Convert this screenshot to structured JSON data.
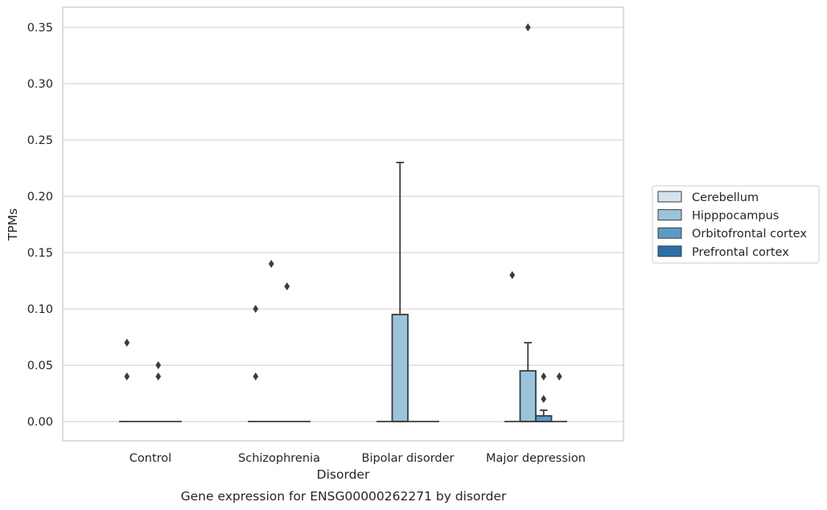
{
  "chart_data": {
    "type": "box",
    "title": "",
    "caption": "Gene expression for ENSG00000262271 by disorder",
    "xlabel": "Disorder",
    "ylabel": "TPMs",
    "ylim": [
      -0.017,
      0.368
    ],
    "yticks": [
      "0.00",
      "0.05",
      "0.10",
      "0.15",
      "0.20",
      "0.25",
      "0.30",
      "0.35"
    ],
    "ytick_values": [
      0,
      0.05,
      0.1,
      0.15,
      0.2,
      0.25,
      0.3,
      0.35
    ],
    "grid": "horizontal",
    "legend_position": "right",
    "categories": [
      "Control",
      "Schizophrenia",
      "Bipolar disorder",
      "Major depression"
    ],
    "series": [
      {
        "name": "Cerebellum",
        "color": "#d4e3f0",
        "boxes": [
          {
            "category": "Control",
            "q1": 0,
            "median": 0,
            "q3": 0,
            "whisker_low": 0,
            "whisker_high": 0,
            "outliers": [
              0.07,
              0.04
            ]
          },
          {
            "category": "Schizophrenia",
            "q1": 0,
            "median": 0,
            "q3": 0,
            "whisker_low": 0,
            "whisker_high": 0,
            "outliers": [
              0.1,
              0.04
            ]
          },
          {
            "category": "Bipolar disorder",
            "q1": 0,
            "median": 0,
            "q3": 0,
            "whisker_low": 0,
            "whisker_high": 0,
            "outliers": []
          },
          {
            "category": "Major depression",
            "q1": 0,
            "median": 0,
            "q3": 0,
            "whisker_low": 0,
            "whisker_high": 0,
            "outliers": [
              0.13
            ]
          }
        ]
      },
      {
        "name": "Hipppocampus",
        "color": "#9ac4db",
        "boxes": [
          {
            "category": "Control",
            "q1": 0,
            "median": 0,
            "q3": 0,
            "whisker_low": 0,
            "whisker_high": 0,
            "outliers": []
          },
          {
            "category": "Schizophrenia",
            "q1": 0,
            "median": 0,
            "q3": 0,
            "whisker_low": 0,
            "whisker_high": 0,
            "outliers": [
              0.14
            ]
          },
          {
            "category": "Bipolar disorder",
            "q1": 0,
            "median": 0,
            "q3": 0.095,
            "whisker_low": 0,
            "whisker_high": 0.23,
            "outliers": []
          },
          {
            "category": "Major depression",
            "q1": 0,
            "median": 0,
            "q3": 0.045,
            "whisker_low": 0,
            "whisker_high": 0.07,
            "outliers": [
              0.35
            ]
          }
        ]
      },
      {
        "name": "Orbitofrontal cortex",
        "color": "#5a9bc6",
        "boxes": [
          {
            "category": "Control",
            "q1": 0,
            "median": 0,
            "q3": 0,
            "whisker_low": 0,
            "whisker_high": 0,
            "outliers": [
              0.05,
              0.04
            ]
          },
          {
            "category": "Schizophrenia",
            "q1": 0,
            "median": 0,
            "q3": 0,
            "whisker_low": 0,
            "whisker_high": 0,
            "outliers": [
              0.12
            ]
          },
          {
            "category": "Bipolar disorder",
            "q1": 0,
            "median": 0,
            "q3": 0,
            "whisker_low": 0,
            "whisker_high": 0,
            "outliers": []
          },
          {
            "category": "Major depression",
            "q1": 0,
            "median": 0,
            "q3": 0.005,
            "whisker_low": 0,
            "whisker_high": 0.01,
            "outliers": [
              0.04,
              0.02
            ]
          }
        ]
      },
      {
        "name": "Prefrontal cortex",
        "color": "#2b6ea8",
        "boxes": [
          {
            "category": "Control",
            "q1": 0,
            "median": 0,
            "q3": 0,
            "whisker_low": 0,
            "whisker_high": 0,
            "outliers": []
          },
          {
            "category": "Schizophrenia",
            "q1": 0,
            "median": 0,
            "q3": 0,
            "whisker_low": 0,
            "whisker_high": 0,
            "outliers": []
          },
          {
            "category": "Bipolar disorder",
            "q1": 0,
            "median": 0,
            "q3": 0,
            "whisker_low": 0,
            "whisker_high": 0,
            "outliers": []
          },
          {
            "category": "Major depression",
            "q1": 0,
            "median": 0,
            "q3": 0,
            "whisker_low": 0,
            "whisker_high": 0,
            "outliers": [
              0.04
            ]
          }
        ]
      }
    ]
  }
}
